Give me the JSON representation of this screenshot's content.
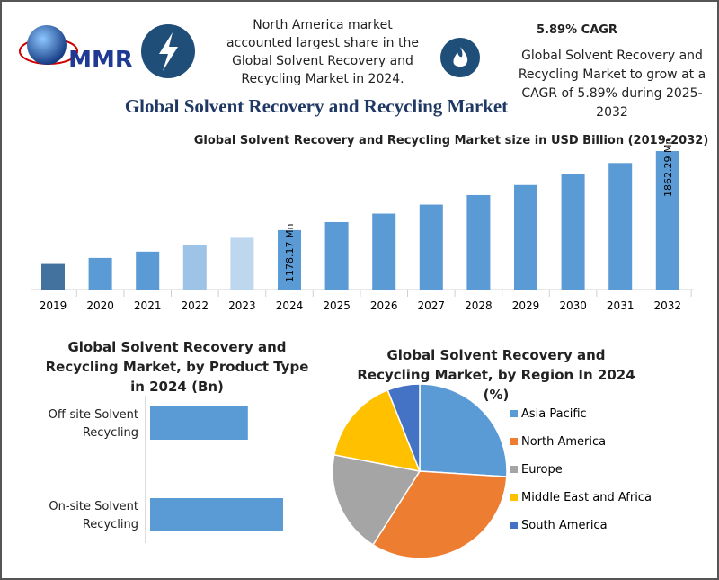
{
  "header": {
    "logo": "MMR",
    "callout_left": "North America market accounted largest share in the Global Solvent Recovery and Recycling Market in 2024.",
    "cagr_title": "5.89% CAGR",
    "callout_right": "Global Solvent Recovery and Recycling Market to grow at a CAGR of 5.89% during 2025-2032",
    "title": "Global Solvent Recovery and Recycling Market"
  },
  "chart_data": [
    {
      "type": "bar",
      "title": "Global Solvent Recovery and Recycling Market size in USD Billion (2019-2032)",
      "categories": [
        "2019",
        "2020",
        "2021",
        "2022",
        "2023",
        "2024",
        "2025",
        "2026",
        "2027",
        "2028",
        "2029",
        "2030",
        "2031",
        "2032"
      ],
      "values": [
        885,
        937,
        992,
        1050,
        1112,
        1178.17,
        1247.6,
        1321.1,
        1398.9,
        1481.3,
        1568.5,
        1660.9,
        1758.7,
        1862.29
      ],
      "value_labels": [
        null,
        null,
        null,
        null,
        null,
        "1178.17 Mn",
        null,
        null,
        null,
        null,
        null,
        null,
        null,
        "1862.29 Mn"
      ],
      "colors": [
        "#44729e",
        "#5b9bd5",
        "#5b9bd5",
        "#9dc3e6",
        "#bdd7ee",
        "#5b9bd5",
        "#5b9bd5",
        "#5b9bd5",
        "#5b9bd5",
        "#5b9bd5",
        "#5b9bd5",
        "#5b9bd5",
        "#5b9bd5",
        "#5b9bd5"
      ]
    },
    {
      "type": "hbar",
      "title": "Global Solvent Recovery and Recycling Market, by Product Type in 2024 (Bn)",
      "categories": [
        "Off-site Solvent Recycling",
        "On-site Solvent Recycling"
      ],
      "values": [
        0.5,
        0.68
      ],
      "color": "#5b9bd5"
    },
    {
      "type": "pie",
      "title": "Global Solvent Recovery and Recycling Market, by Region In 2024 (%)",
      "categories": [
        "Asia Pacific",
        "North America",
        "Europe",
        "Middle East and Africa",
        "South America"
      ],
      "values": [
        26,
        33,
        19,
        16,
        6
      ],
      "colors": [
        "#5b9bd5",
        "#ed7d31",
        "#a5a5a5",
        "#ffc000",
        "#4472c4"
      ],
      "legend": "right"
    }
  ]
}
